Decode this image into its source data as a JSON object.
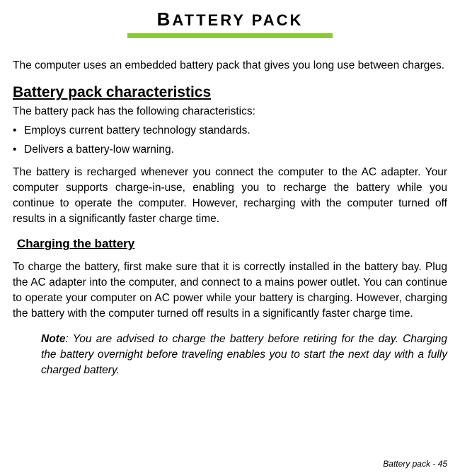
{
  "colors": {
    "accent": "#8CC63F",
    "text": "#000000",
    "background": "#ffffff"
  },
  "title": {
    "first": "B",
    "rest": "ATTERY PACK"
  },
  "intro": "The computer uses an embedded battery pack that gives you long use between charges.",
  "section1": {
    "heading": "Battery pack characteristics",
    "lead": "The battery pack has the following characteristics:",
    "bullets": [
      "Employs current battery technology standards.",
      "Delivers a battery-low warning."
    ],
    "para": "The battery is recharged whenever you connect the computer to the AC adapter. Your computer supports charge-in-use, enabling you to recharge the battery while you continue to operate the computer. However, recharging with the computer turned off results in a significantly faster charge time."
  },
  "section2": {
    "heading": "Charging the battery",
    "para": "To charge the battery, first make sure that it is correctly installed in the battery bay. Plug the AC adapter into the computer, and connect to a mains power outlet. You can continue to operate your computer on AC power while your battery is charging. However, charging the battery with the computer turned off results in a significantly faster charge time.",
    "note_label": "Note",
    "note_body": ": You are advised to charge the battery before retiring for the day. Charging the battery overnight before traveling enables you to start the next day with a fully charged battery."
  },
  "footer": "Battery pack -  45"
}
